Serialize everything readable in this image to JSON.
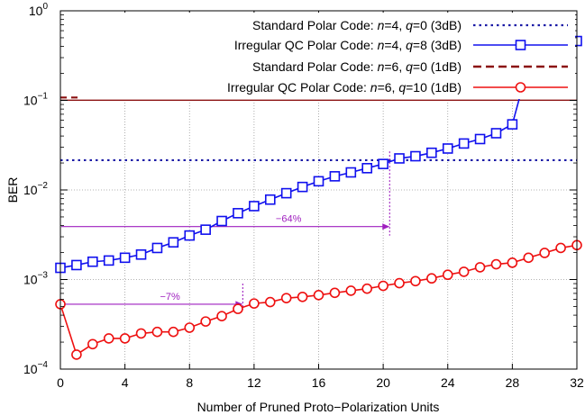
{
  "chart_data": {
    "type": "line",
    "xlabel": "Number of Pruned Proto−Polarization Units",
    "ylabel": "BER",
    "xlim": [
      0,
      32
    ],
    "ylim": [
      0.0001,
      1
    ],
    "yscale": "log",
    "grid": true,
    "legend_position": "top-right",
    "x_ticks": [
      0,
      4,
      8,
      12,
      16,
      20,
      24,
      28,
      32
    ],
    "y_ticks": [
      {
        "value": 0.0001,
        "base": "10",
        "exp": "−4"
      },
      {
        "value": 0.001,
        "base": "10",
        "exp": "−3"
      },
      {
        "value": 0.01,
        "base": "10",
        "exp": "−2"
      },
      {
        "value": 0.1,
        "base": "10",
        "exp": "−1"
      },
      {
        "value": 1,
        "base": "10",
        "exp": "0"
      }
    ],
    "series": [
      {
        "name": "Standard Polar Code: n=4, q=0 (3dB)",
        "legend": {
          "prefix": "Standard Polar Code: ",
          "v1": "n",
          "eq1": "=4, ",
          "v2": "q",
          "eq2": "=0 (3dB)"
        },
        "style": "horizontal-dotted",
        "color": "#1a1aa6",
        "value": 0.0215
      },
      {
        "name": "Irregular QC Polar Code: n=4, q=8 (3dB)",
        "legend": {
          "prefix": "Irregular QC Polar Code: ",
          "v1": "n",
          "eq1": "=4, ",
          "v2": "q",
          "eq2": "=8 (3dB)"
        },
        "style": "line-square",
        "color": "#1010ee",
        "x": [
          0,
          1,
          2,
          3,
          4,
          5,
          6,
          7,
          8,
          9,
          10,
          11,
          12,
          13,
          14,
          15,
          16,
          17,
          18,
          19,
          20,
          21,
          22,
          23,
          24,
          25,
          26,
          27,
          28,
          29,
          30,
          31,
          32
        ],
        "values": [
          0.00135,
          0.00145,
          0.00158,
          0.00163,
          0.00175,
          0.0019,
          0.00225,
          0.0026,
          0.0031,
          0.0036,
          0.0045,
          0.0055,
          0.0066,
          0.0078,
          0.0092,
          0.0108,
          0.0125,
          0.0142,
          0.0157,
          0.0175,
          0.0195,
          0.0225,
          0.0238,
          0.026,
          0.029,
          0.033,
          0.037,
          0.043,
          0.054,
          0.25,
          0.37,
          0.42,
          0.46
        ]
      },
      {
        "name": "Standard Polar Code: n=6, q=0 (1dB)",
        "legend": {
          "prefix": "Standard Polar Code: ",
          "v1": "n",
          "eq1": "=6, ",
          "v2": "q",
          "eq2": "=0 (1dB)"
        },
        "style": "horizontal-dashed",
        "color": "#8b1010",
        "value": 0.104
      },
      {
        "name": "Irregular QC Polar Code: n=6, q=10 (1dB)",
        "legend": {
          "prefix": "Irregular QC Polar Code: ",
          "v1": "n",
          "eq1": "=6, ",
          "v2": "q",
          "eq2": "=10 (1dB)"
        },
        "style": "line-circle",
        "color": "#ee1010",
        "x": [
          0,
          1,
          2,
          3,
          4,
          5,
          6,
          7,
          8,
          9,
          10,
          11,
          12,
          13,
          14,
          15,
          16,
          17,
          18,
          19,
          20,
          21,
          22,
          23,
          24,
          25,
          26,
          27,
          28,
          29,
          30,
          31,
          32
        ],
        "values": [
          0.00053,
          0.000145,
          0.00019,
          0.00022,
          0.00022,
          0.00025,
          0.00026,
          0.00026,
          0.00029,
          0.00034,
          0.00039,
          0.00047,
          0.00054,
          0.00056,
          0.00062,
          0.00064,
          0.00067,
          0.00071,
          0.00075,
          0.00079,
          0.00085,
          0.00091,
          0.00096,
          0.00103,
          0.00113,
          0.00122,
          0.00137,
          0.00148,
          0.00154,
          0.00175,
          0.00198,
          0.00225,
          0.00242
        ]
      }
    ],
    "annotations": [
      {
        "text": "−64%",
        "x_start": 0,
        "x_end": 20.4,
        "y": 0.0039,
        "color": "#9f1fbf"
      },
      {
        "text": "−7%",
        "x_start": 0,
        "x_end": 11.3,
        "y": 0.00053,
        "color": "#9f1fbf"
      }
    ]
  }
}
